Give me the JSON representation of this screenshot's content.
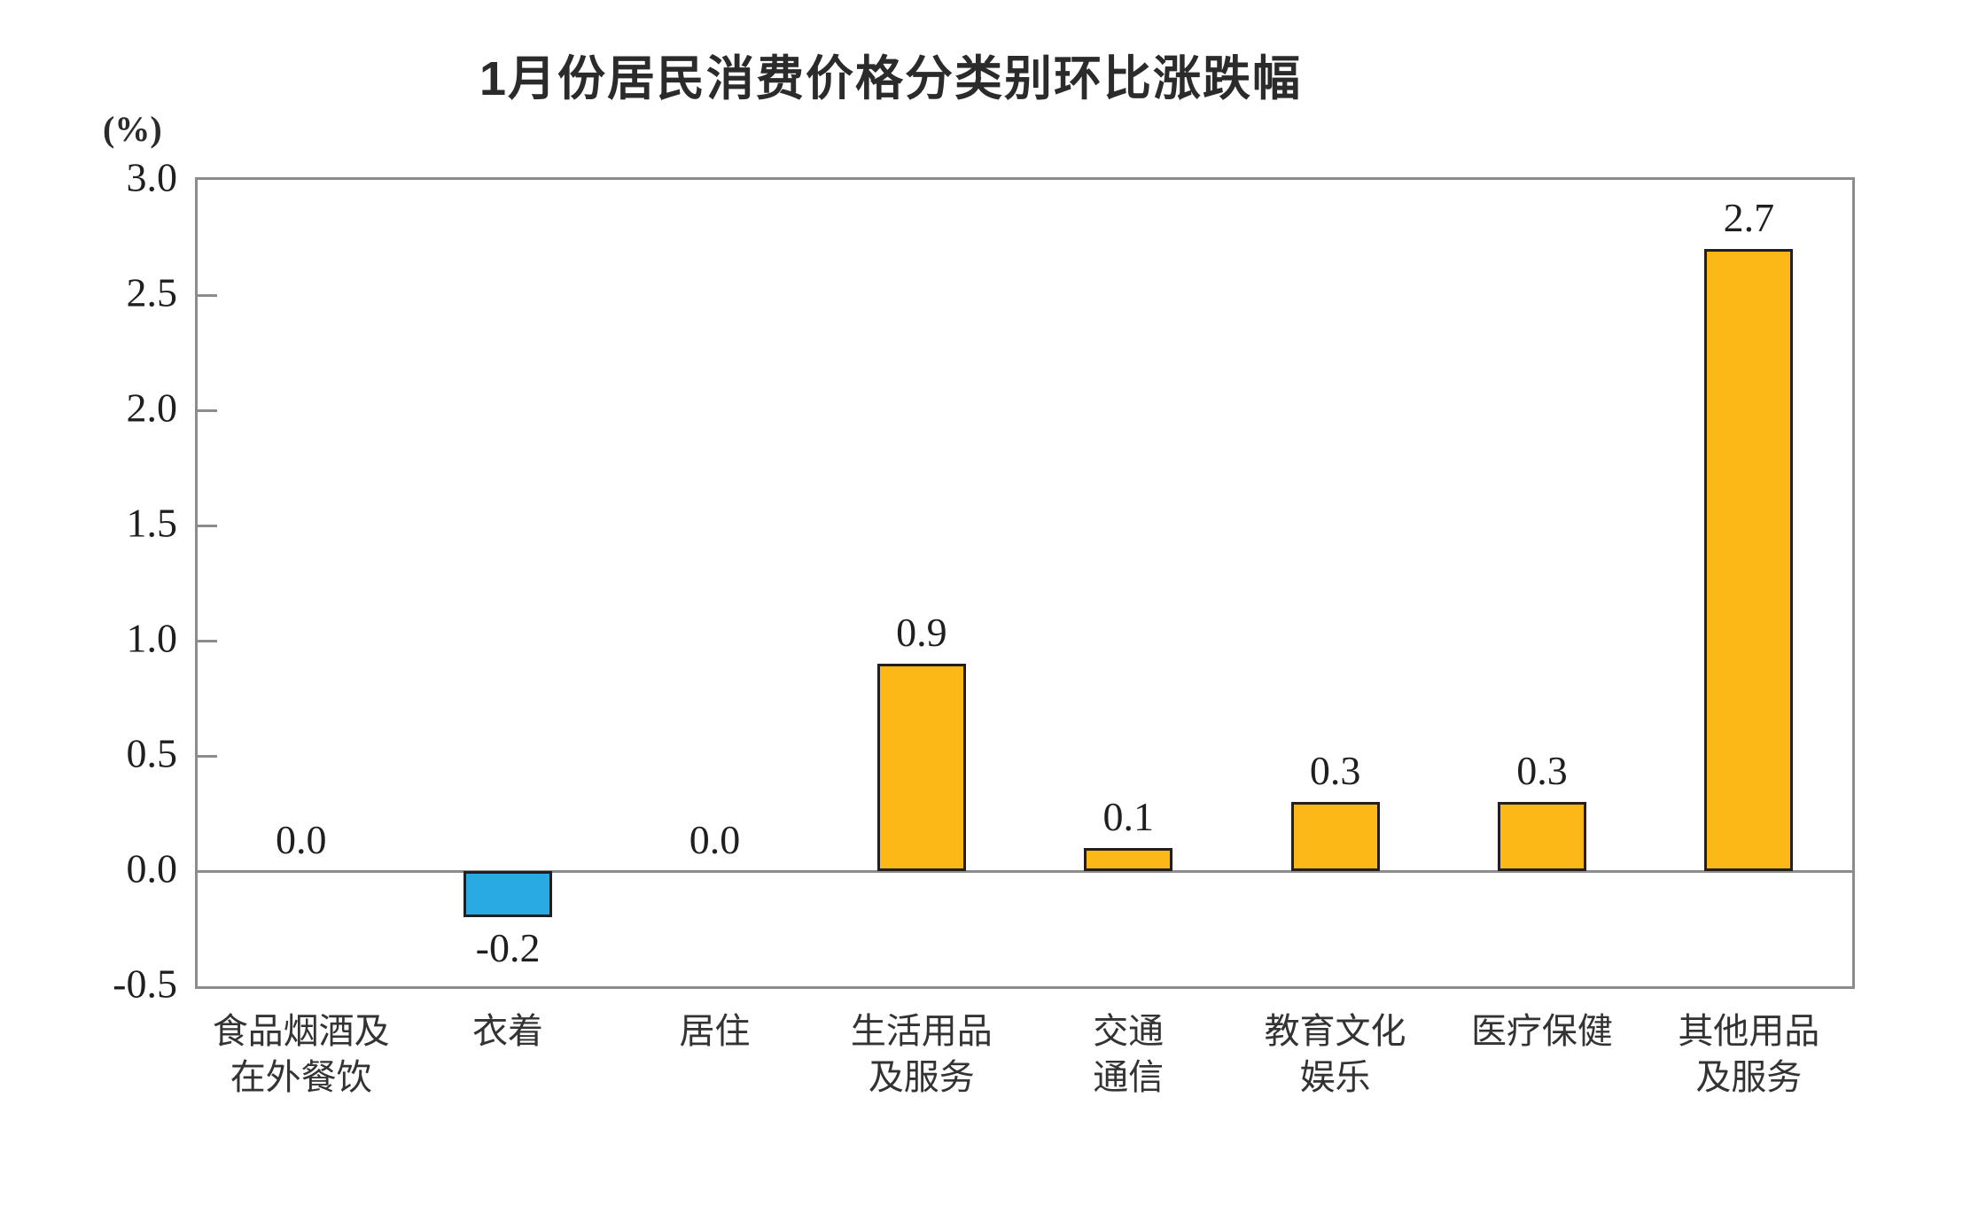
{
  "chart_data": {
    "type": "bar",
    "title": "1月份居民消费价格分类别环比涨跌幅",
    "unit_label": "(%)",
    "categories": [
      {
        "lines": [
          "食品烟酒及",
          "在外餐饮"
        ]
      },
      {
        "lines": [
          "衣着"
        ]
      },
      {
        "lines": [
          "居住"
        ]
      },
      {
        "lines": [
          "生活用品",
          "及服务"
        ]
      },
      {
        "lines": [
          "交通",
          "通信"
        ]
      },
      {
        "lines": [
          "教育文化",
          "娱乐"
        ]
      },
      {
        "lines": [
          "医疗保健"
        ]
      },
      {
        "lines": [
          "其他用品",
          "及服务"
        ]
      }
    ],
    "values": [
      0.0,
      -0.2,
      0.0,
      0.9,
      0.1,
      0.3,
      0.3,
      2.7
    ],
    "value_labels": [
      "0.0",
      "-0.2",
      "0.0",
      "0.9",
      "0.1",
      "0.3",
      "0.3",
      "2.7"
    ],
    "xlabel": "",
    "ylabel": "(%)",
    "ylim": [
      -0.5,
      3.0
    ],
    "y_ticks": [
      "3.0",
      "2.5",
      "2.0",
      "1.5",
      "1.0",
      "0.5",
      "0.0",
      "-0.5"
    ],
    "grid": false,
    "legend_position": "none",
    "colors": {
      "bar_positive": "#fbb817",
      "bar_negative": "#29abe2",
      "bar_border": "#231f20",
      "axis": "#8c8c8c",
      "text": "#1f1f1f"
    }
  }
}
